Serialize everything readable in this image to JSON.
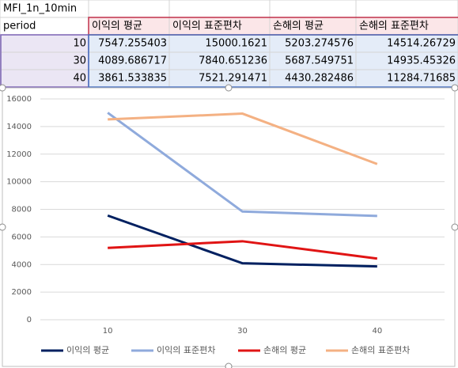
{
  "table": {
    "title": "MFI_1n_10min",
    "header": [
      "period",
      "이익의 평균",
      "이익의 표준편차",
      "손해의 평균",
      "손해의 표준편차"
    ],
    "rows": [
      [
        "10",
        "7547.255403",
        "15000.1621",
        "5203.274576",
        "14514.26729"
      ],
      [
        "30",
        "4089.686717",
        "7840.651236",
        "5687.549751",
        "14935.45326"
      ],
      [
        "40",
        "3861.533835",
        "7521.291471",
        "4430.282486",
        "11284.71685"
      ]
    ]
  },
  "chart_data": {
    "type": "line",
    "categories": [
      "10",
      "30",
      "40"
    ],
    "series": [
      {
        "name": "이익의 평균",
        "color": "#002060",
        "values": [
          7547.255403,
          4089.686717,
          3861.533835
        ]
      },
      {
        "name": "이익의 표준편차",
        "color": "#8faadc",
        "values": [
          15000.1621,
          7840.651236,
          7521.291471
        ]
      },
      {
        "name": "손해의 평균",
        "color": "#e01414",
        "values": [
          5203.274576,
          5687.549751,
          4430.282486
        ]
      },
      {
        "name": "손해의 표준편차",
        "color": "#f4b183",
        "values": [
          14514.26729,
          14935.45326,
          11284.71685
        ]
      }
    ],
    "ylim": [
      0,
      16000
    ],
    "yticks": [
      0,
      2000,
      4000,
      6000,
      8000,
      10000,
      12000,
      14000,
      16000
    ],
    "grid": true,
    "legend": "bottom"
  }
}
